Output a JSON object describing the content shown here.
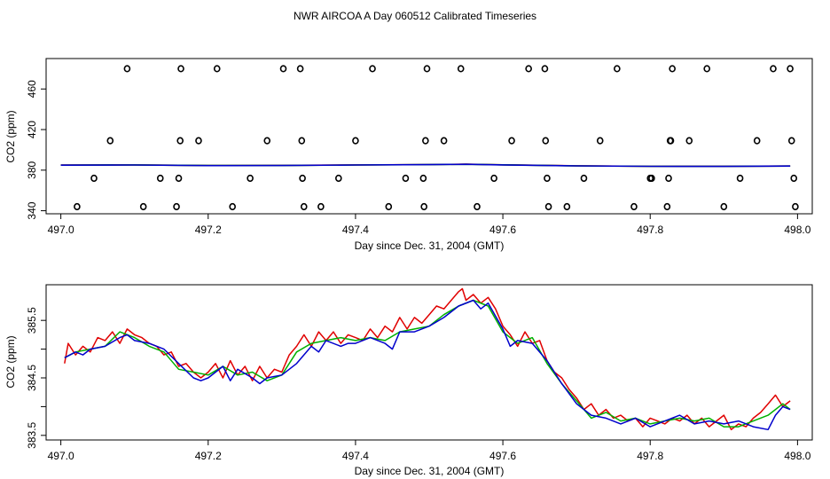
{
  "title": "NWR AIRCOA A  Day 060512  Calibrated Timeseries",
  "colors": {
    "red": "#e00000",
    "green": "#00b000",
    "blue": "#0000cc",
    "axis": "#000000"
  },
  "chart_data": [
    {
      "type": "scatter",
      "name": "top-panel",
      "xlabel": "Day since Dec. 31, 2004 (GMT)",
      "ylabel": "CO2 (ppm)",
      "xlim": [
        496.98,
        498.02
      ],
      "ylim": [
        337,
        490
      ],
      "xticks": [
        497.0,
        497.2,
        497.4,
        497.6,
        497.8,
        498.0
      ],
      "xtick_labels": [
        "497.0",
        "497.2",
        "497.4",
        "497.6",
        "497.8",
        "498.0"
      ],
      "yticks": [
        340,
        380,
        420,
        460
      ],
      "ytick_labels": [
        "340",
        "380",
        "420",
        "460"
      ],
      "points": [
        [
          497.022,
          344
        ],
        [
          497.045,
          372
        ],
        [
          497.067,
          409
        ],
        [
          497.09,
          480
        ],
        [
          497.112,
          344
        ],
        [
          497.135,
          372
        ],
        [
          497.157,
          344
        ],
        [
          497.16,
          372
        ],
        [
          497.162,
          409
        ],
        [
          497.163,
          480
        ],
        [
          497.187,
          409
        ],
        [
          497.212,
          480
        ],
        [
          497.233,
          344
        ],
        [
          497.257,
          372
        ],
        [
          497.28,
          409
        ],
        [
          497.302,
          480
        ],
        [
          497.325,
          480
        ],
        [
          497.327,
          409
        ],
        [
          497.328,
          372
        ],
        [
          497.33,
          344
        ],
        [
          497.353,
          344
        ],
        [
          497.377,
          372
        ],
        [
          497.4,
          409
        ],
        [
          497.423,
          480
        ],
        [
          497.445,
          344
        ],
        [
          497.468,
          372
        ],
        [
          497.492,
          372
        ],
        [
          497.493,
          344
        ],
        [
          497.495,
          409
        ],
        [
          497.497,
          480
        ],
        [
          497.52,
          409
        ],
        [
          497.543,
          480
        ],
        [
          497.565,
          344
        ],
        [
          497.588,
          372
        ],
        [
          497.612,
          409
        ],
        [
          497.635,
          480
        ],
        [
          497.657,
          480
        ],
        [
          497.658,
          409
        ],
        [
          497.66,
          372
        ],
        [
          497.662,
          344
        ],
        [
          497.687,
          344
        ],
        [
          497.71,
          372
        ],
        [
          497.732,
          409
        ],
        [
          497.755,
          480
        ],
        [
          497.778,
          344
        ],
        [
          497.8,
          372
        ],
        [
          497.802,
          372
        ],
        [
          497.823,
          344
        ],
        [
          497.825,
          372
        ],
        [
          497.827,
          409
        ],
        [
          497.828,
          409
        ],
        [
          497.83,
          480
        ],
        [
          497.853,
          409
        ],
        [
          497.877,
          480
        ],
        [
          497.9,
          344
        ],
        [
          497.922,
          372
        ],
        [
          497.945,
          409
        ],
        [
          497.967,
          480
        ],
        [
          497.99,
          480
        ],
        [
          497.992,
          409
        ],
        [
          497.995,
          372
        ],
        [
          497.997,
          344
        ]
      ],
      "series": [
        {
          "name": "red",
          "x": [
            497.0,
            497.1,
            497.2,
            497.3,
            497.4,
            497.5,
            497.55,
            497.6,
            497.7,
            497.8,
            497.9,
            497.99
          ],
          "y": [
            385.0,
            385.2,
            384.6,
            384.7,
            385.2,
            385.5,
            385.9,
            385.3,
            384.3,
            383.8,
            383.9,
            384.0
          ]
        },
        {
          "name": "green",
          "x": [
            497.0,
            497.1,
            497.2,
            497.3,
            497.4,
            497.5,
            497.55,
            497.6,
            497.7,
            497.8,
            497.9,
            497.99
          ],
          "y": [
            384.9,
            385.2,
            384.6,
            384.6,
            385.1,
            385.4,
            385.8,
            385.3,
            384.2,
            383.8,
            383.8,
            384.0
          ]
        },
        {
          "name": "blue",
          "x": [
            497.0,
            497.1,
            497.2,
            497.3,
            497.4,
            497.5,
            497.55,
            497.6,
            497.7,
            497.8,
            497.9,
            497.99
          ],
          "y": [
            384.9,
            385.1,
            384.5,
            384.6,
            385.1,
            385.4,
            385.8,
            385.2,
            384.2,
            383.8,
            383.7,
            384.0
          ]
        }
      ]
    },
    {
      "type": "line",
      "name": "bottom-panel",
      "xlabel": "Day since Dec. 31, 2004 (GMT)",
      "ylabel": "CO2 (ppm)",
      "xlim": [
        496.98,
        498.02
      ],
      "ylim": [
        383.42,
        386.12
      ],
      "xticks": [
        497.0,
        497.2,
        497.4,
        497.6,
        497.8,
        498.0
      ],
      "xtick_labels": [
        "497.0",
        "497.2",
        "497.4",
        "497.6",
        "497.8",
        "498.0"
      ],
      "yticks": [
        383.5,
        384.5,
        385.5
      ],
      "ytick_labels": [
        "383.5",
        "384.5",
        "385.5"
      ],
      "yticks_minor": [
        384.0,
        385.0
      ],
      "series": [
        {
          "name": "red",
          "x": [
            497.005,
            497.01,
            497.02,
            497.03,
            497.04,
            497.05,
            497.06,
            497.07,
            497.08,
            497.09,
            497.1,
            497.11,
            497.12,
            497.13,
            497.14,
            497.15,
            497.16,
            497.17,
            497.18,
            497.19,
            497.2,
            497.21,
            497.22,
            497.23,
            497.24,
            497.25,
            497.26,
            497.27,
            497.28,
            497.29,
            497.3,
            497.31,
            497.32,
            497.33,
            497.34,
            497.35,
            497.36,
            497.37,
            497.38,
            497.39,
            497.4,
            497.41,
            497.42,
            497.43,
            497.44,
            497.45,
            497.46,
            497.47,
            497.48,
            497.49,
            497.5,
            497.51,
            497.52,
            497.53,
            497.54,
            497.545,
            497.55,
            497.56,
            497.57,
            497.58,
            497.59,
            497.6,
            497.61,
            497.62,
            497.63,
            497.64,
            497.65,
            497.66,
            497.67,
            497.68,
            497.69,
            497.7,
            497.71,
            497.72,
            497.73,
            497.74,
            497.75,
            497.76,
            497.77,
            497.78,
            497.79,
            497.8,
            497.81,
            497.82,
            497.83,
            497.84,
            497.85,
            497.86,
            497.87,
            497.88,
            497.89,
            497.9,
            497.91,
            497.92,
            497.93,
            497.94,
            497.95,
            497.96,
            497.97,
            497.98,
            497.99
          ],
          "y": [
            384.75,
            385.1,
            384.9,
            385.05,
            384.95,
            385.2,
            385.15,
            385.3,
            385.1,
            385.35,
            385.25,
            385.2,
            385.1,
            385.05,
            384.9,
            384.95,
            384.7,
            384.75,
            384.6,
            384.5,
            384.6,
            384.75,
            384.5,
            384.8,
            384.55,
            384.7,
            384.45,
            384.7,
            384.5,
            384.65,
            384.6,
            384.9,
            385.05,
            385.25,
            385.05,
            385.3,
            385.15,
            385.3,
            385.1,
            385.25,
            385.2,
            385.15,
            385.35,
            385.2,
            385.4,
            385.3,
            385.55,
            385.35,
            385.55,
            385.45,
            385.6,
            385.75,
            385.7,
            385.85,
            386.0,
            386.05,
            385.85,
            385.95,
            385.8,
            385.9,
            385.7,
            385.4,
            385.25,
            385.05,
            385.3,
            385.1,
            385.15,
            384.8,
            384.6,
            384.5,
            384.3,
            384.15,
            383.95,
            384.05,
            383.85,
            383.95,
            383.8,
            383.85,
            383.75,
            383.8,
            383.65,
            383.8,
            383.75,
            383.7,
            383.8,
            383.75,
            383.85,
            383.7,
            383.8,
            383.65,
            383.75,
            383.85,
            383.6,
            383.7,
            383.65,
            383.8,
            383.9,
            384.05,
            384.2,
            384.0,
            384.1
          ]
        },
        {
          "name": "green",
          "x": [
            497.005,
            497.02,
            497.04,
            497.06,
            497.08,
            497.1,
            497.12,
            497.14,
            497.16,
            497.18,
            497.2,
            497.22,
            497.24,
            497.26,
            497.28,
            497.3,
            497.32,
            497.34,
            497.36,
            497.38,
            497.4,
            497.42,
            497.44,
            497.46,
            497.48,
            497.5,
            497.52,
            497.54,
            497.56,
            497.58,
            497.6,
            497.62,
            497.64,
            497.66,
            497.68,
            497.7,
            497.72,
            497.74,
            497.76,
            497.78,
            497.8,
            497.82,
            497.84,
            497.86,
            497.88,
            497.9,
            497.92,
            497.94,
            497.96,
            497.98,
            497.99
          ],
          "y": [
            384.85,
            384.95,
            385.0,
            385.05,
            385.3,
            385.2,
            385.05,
            384.95,
            384.65,
            384.6,
            384.55,
            384.7,
            384.55,
            384.6,
            384.45,
            384.55,
            384.95,
            385.1,
            385.15,
            385.2,
            385.15,
            385.2,
            385.15,
            385.3,
            385.35,
            385.4,
            385.6,
            385.75,
            385.85,
            385.75,
            385.3,
            385.1,
            385.2,
            384.75,
            384.4,
            384.1,
            383.8,
            383.9,
            383.75,
            383.8,
            383.7,
            383.75,
            383.8,
            383.75,
            383.8,
            383.65,
            383.65,
            383.75,
            383.85,
            384.05,
            383.95
          ]
        },
        {
          "name": "blue",
          "x": [
            497.005,
            497.02,
            497.03,
            497.04,
            497.06,
            497.08,
            497.09,
            497.1,
            497.12,
            497.14,
            497.16,
            497.18,
            497.19,
            497.2,
            497.22,
            497.23,
            497.24,
            497.26,
            497.27,
            497.28,
            497.3,
            497.32,
            497.34,
            497.35,
            497.36,
            497.38,
            497.39,
            497.4,
            497.42,
            497.44,
            497.45,
            497.46,
            497.48,
            497.5,
            497.52,
            497.54,
            497.56,
            497.57,
            497.58,
            497.6,
            497.61,
            497.62,
            497.64,
            497.66,
            497.68,
            497.7,
            497.72,
            497.74,
            497.76,
            497.78,
            497.8,
            497.82,
            497.84,
            497.86,
            497.88,
            497.9,
            497.92,
            497.94,
            497.96,
            497.97,
            497.98,
            497.99
          ],
          "y": [
            384.85,
            384.95,
            384.9,
            385.0,
            385.05,
            385.2,
            385.25,
            385.15,
            385.1,
            385.0,
            384.75,
            384.5,
            384.45,
            384.5,
            384.7,
            384.45,
            384.65,
            384.5,
            384.4,
            384.5,
            384.55,
            384.75,
            385.05,
            384.95,
            385.15,
            385.05,
            385.1,
            385.1,
            385.2,
            385.1,
            385.0,
            385.3,
            385.3,
            385.4,
            385.55,
            385.75,
            385.85,
            385.7,
            385.8,
            385.35,
            385.05,
            385.15,
            385.1,
            384.8,
            384.4,
            384.05,
            383.85,
            383.8,
            383.7,
            383.8,
            383.65,
            383.75,
            383.85,
            383.7,
            383.75,
            383.7,
            383.75,
            383.65,
            383.6,
            383.85,
            384.0,
            383.95
          ]
        }
      ]
    }
  ]
}
